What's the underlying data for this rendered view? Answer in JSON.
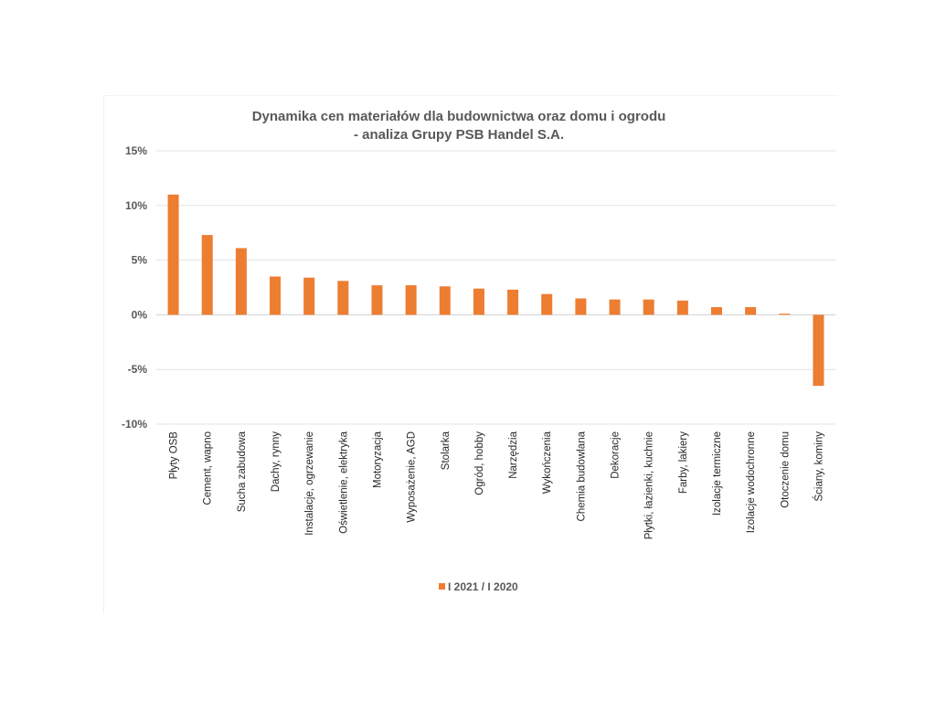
{
  "chart_data": {
    "type": "bar",
    "title": "Dynamika cen materiałów dla budownictwa oraz domu i ogrodu",
    "subtitle": "- analiza Grupy PSB Handel S.A.",
    "xlabel": "",
    "ylabel": "",
    "ylim": [
      -10,
      15
    ],
    "yticks": [
      15,
      10,
      5,
      0,
      -5,
      -10
    ],
    "ytick_labels": [
      "15%",
      "10%",
      "5%",
      "0%",
      "-5%",
      "-10%"
    ],
    "grid": true,
    "legend_position": "bottom",
    "categories": [
      "Płyty OSB",
      "Cement, wapno",
      "Sucha zabudowa",
      "Dachy, rynny",
      "Instalacje, ogrzewanie",
      "Oświetlenie, elektryka",
      "Motoryzacja",
      "Wyposażenie, AGD",
      "Stolarka",
      "Ogród, hobby",
      "Narzędzia",
      "Wykończenia",
      "Chemia budowlana",
      "Dekoracje",
      "Płytki, łazienki, kuchnie",
      "Farby, lakiery",
      "Izolacje termiczne",
      "Izolacje wodochronne",
      "Otoczenie domu",
      "Ściany, kominy"
    ],
    "series": [
      {
        "name": "I 2021 / I 2020",
        "color": "#ED7D31",
        "values": [
          11.0,
          7.3,
          6.1,
          3.5,
          3.4,
          3.1,
          2.7,
          2.7,
          2.6,
          2.4,
          2.3,
          1.9,
          1.5,
          1.4,
          1.4,
          1.3,
          0.7,
          0.7,
          0.1,
          -6.5
        ]
      }
    ]
  }
}
